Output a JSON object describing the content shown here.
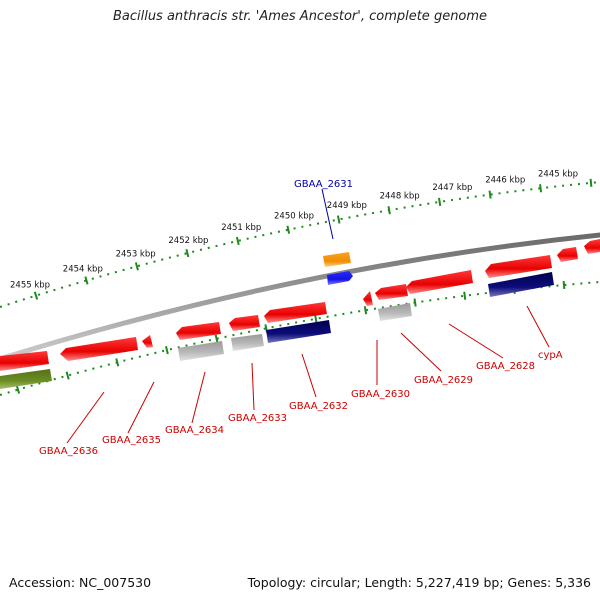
{
  "title": "Bacillus anthracis str. 'Ames Ancestor', complete genome",
  "footer": {
    "accession": "Accession: NC_007530",
    "summary": "Topology: circular; Length: 5,227,419 bp; Genes: 5,336"
  },
  "colors": {
    "backbone": "#8a8a8a",
    "ruler": "#1e8a1e",
    "forward_gene": "#ee1111",
    "gray_gene": "#b4b4b4",
    "navy_gene": "#0c0c7a",
    "olive_gene": "#6b8e23",
    "orange_gene": "#f08c00",
    "blue_gene": "#1414e6",
    "label_red": "#cc0000",
    "label_blue": "#0000aa"
  },
  "ruler_labels": [
    "2445 kbp",
    "2446 kbp",
    "2447 kbp",
    "2448 kbp",
    "2449 kbp",
    "2450 kbp",
    "2451 kbp",
    "2452 kbp",
    "2453 kbp",
    "2454 kbp",
    "2455 kbp"
  ],
  "gene_labels": [
    {
      "name": "GBAA_2631",
      "color": "blue"
    },
    {
      "name": "cypA",
      "color": "red"
    },
    {
      "name": "GBAA_2628",
      "color": "red"
    },
    {
      "name": "GBAA_2629",
      "color": "red"
    },
    {
      "name": "GBAA_2630",
      "color": "red"
    },
    {
      "name": "GBAA_2632",
      "color": "red"
    },
    {
      "name": "GBAA_2633",
      "color": "red"
    },
    {
      "name": "GBAA_2634",
      "color": "red"
    },
    {
      "name": "GBAA_2635",
      "color": "red"
    },
    {
      "name": "GBAA_2636",
      "color": "red"
    }
  ]
}
